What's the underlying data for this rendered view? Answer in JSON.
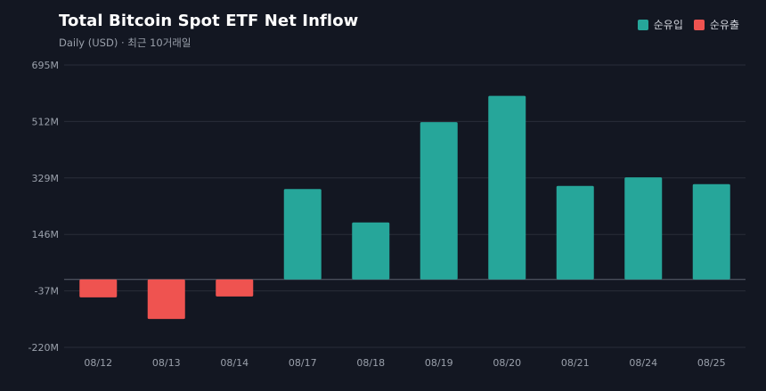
{
  "chart_data": {
    "type": "bar",
    "title": "Total Bitcoin Spot ETF Net Inflow",
    "subtitle": "Daily (USD) · 최근 10거래일",
    "categories": [
      "08/12",
      "08/13",
      "08/14",
      "08/17",
      "08/18",
      "08/19",
      "08/20",
      "08/21",
      "08/24",
      "08/25"
    ],
    "values": [
      -58,
      -128,
      -55,
      293,
      185,
      510,
      595,
      303,
      331,
      309
    ],
    "unit": "M",
    "ylim": [
      -220,
      695
    ],
    "yticks": [
      -220,
      -37,
      146,
      329,
      512,
      695
    ],
    "ytick_labels": [
      "-220M",
      "-37M",
      "146M",
      "329M",
      "512M",
      "695M"
    ],
    "grid": true,
    "legend": {
      "position": "top-right",
      "entries": [
        {
          "label": "순유입",
          "color": "#26a69a"
        },
        {
          "label": "순유출",
          "color": "#ef5350"
        }
      ]
    },
    "colors": {
      "positive": "#26a69a",
      "negative": "#ef5350"
    }
  }
}
